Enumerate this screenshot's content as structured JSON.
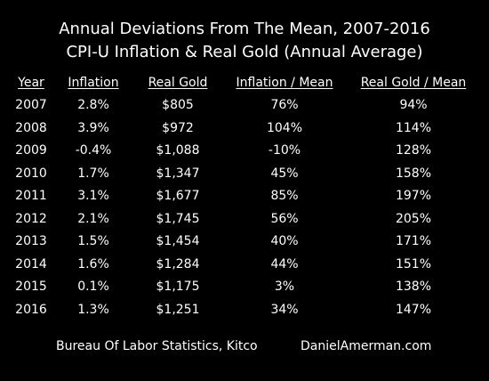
{
  "chart_data": {
    "type": "table",
    "title": "Annual Deviations From The Mean, 2007-2016",
    "subtitle": "CPI-U Inflation & Real Gold (Annual Average)",
    "columns": [
      "Year",
      "Inflation",
      "Real Gold",
      "Inflation / Mean",
      "Real Gold / Mean"
    ],
    "rows": [
      [
        "2007",
        "2.8%",
        "$805",
        "76%",
        "94%"
      ],
      [
        "2008",
        "3.9%",
        "$972",
        "104%",
        "114%"
      ],
      [
        "2009",
        "-0.4%",
        "$1,088",
        "-10%",
        "128%"
      ],
      [
        "2010",
        "1.7%",
        "$1,347",
        "45%",
        "158%"
      ],
      [
        "2011",
        "3.1%",
        "$1,677",
        "85%",
        "197%"
      ],
      [
        "2012",
        "2.1%",
        "$1,745",
        "56%",
        "205%"
      ],
      [
        "2013",
        "1.5%",
        "$1,454",
        "40%",
        "171%"
      ],
      [
        "2014",
        "1.6%",
        "$1,284",
        "44%",
        "151%"
      ],
      [
        "2015",
        "0.1%",
        "$1,175",
        "3%",
        "138%"
      ],
      [
        "2016",
        "1.3%",
        "$1,251",
        "34%",
        "147%"
      ]
    ]
  },
  "footer": {
    "source": "Bureau Of Labor Statistics, Kitco",
    "site": "DanielAmerman.com"
  },
  "colors": {
    "background": "#000000",
    "text": "#ffffff"
  }
}
